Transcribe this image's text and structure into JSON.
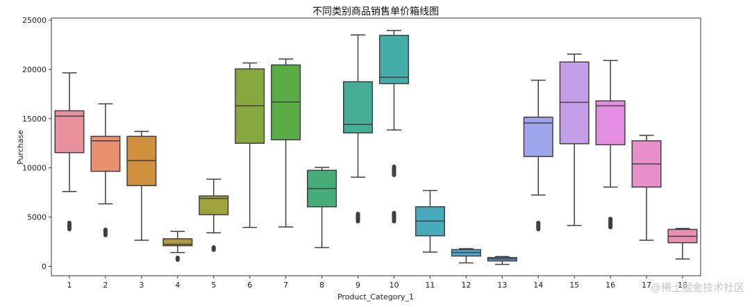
{
  "chart_data": {
    "type": "box",
    "title": "不同类别商品销售单价箱线图",
    "xlabel": "Product_Category_1",
    "ylabel": "Purchase",
    "ylim": [
      -1000,
      25500
    ],
    "yticks": [
      0,
      5000,
      10000,
      15000,
      20000,
      25000
    ],
    "categories": [
      "1",
      "2",
      "3",
      "4",
      "5",
      "6",
      "7",
      "8",
      "9",
      "10",
      "11",
      "12",
      "13",
      "14",
      "15",
      "16",
      "17",
      "18"
    ],
    "boxes": [
      {
        "category": "1",
        "color": "#e8919c",
        "whisker_low": 7600,
        "q1": 11550,
        "median": 15250,
        "q3": 15800,
        "whisker_high": 19650,
        "outliers": [
          3700,
          4500
        ]
      },
      {
        "category": "2",
        "color": "#e8906f",
        "whisker_low": 6350,
        "q1": 9650,
        "median": 12750,
        "q3": 13200,
        "whisker_high": 16500,
        "outliers": [
          3100,
          3800
        ]
      },
      {
        "category": "3",
        "color": "#d0903e",
        "whisker_low": 2650,
        "q1": 8200,
        "median": 10750,
        "q3": 13200,
        "whisker_high": 13700,
        "outliers": []
      },
      {
        "category": "4",
        "color": "#b49a3c",
        "whisker_low": 1400,
        "q1": 2100,
        "median": 2250,
        "q3": 2800,
        "whisker_high": 3550,
        "outliers": [
          600,
          950
        ]
      },
      {
        "category": "5",
        "color": "#9ea33a",
        "whisker_low": 3400,
        "q1": 5250,
        "median": 6900,
        "q3": 7150,
        "whisker_high": 8850,
        "outliers": [
          1600,
          2000
        ]
      },
      {
        "category": "6",
        "color": "#86a83f",
        "whisker_low": 3950,
        "q1": 12500,
        "median": 16300,
        "q3": 20050,
        "whisker_high": 20650,
        "outliers": []
      },
      {
        "category": "7",
        "color": "#5aac46",
        "whisker_low": 4000,
        "q1": 12850,
        "median": 16700,
        "q3": 20450,
        "whisker_high": 21050,
        "outliers": []
      },
      {
        "category": "8",
        "color": "#47ad78",
        "whisker_low": 1900,
        "q1": 6050,
        "median": 7900,
        "q3": 9750,
        "whisker_high": 10050,
        "outliers": []
      },
      {
        "category": "9",
        "color": "#45ae95",
        "whisker_low": 9050,
        "q1": 13550,
        "median": 14400,
        "q3": 18750,
        "whisker_high": 23500,
        "outliers": [
          4500,
          5400
        ]
      },
      {
        "category": "10",
        "color": "#45ada7",
        "whisker_low": 13850,
        "q1": 18550,
        "median": 19200,
        "q3": 23450,
        "whisker_high": 23950,
        "outliers": [
          4500,
          5500,
          9200,
          10200
        ]
      },
      {
        "category": "11",
        "color": "#48abbb",
        "whisker_low": 1450,
        "q1": 3100,
        "median": 4600,
        "q3": 6050,
        "whisker_high": 7700,
        "outliers": []
      },
      {
        "category": "12",
        "color": "#4ca8cd",
        "whisker_low": 350,
        "q1": 1050,
        "median": 1400,
        "q3": 1700,
        "whisker_high": 1800,
        "outliers": []
      },
      {
        "category": "13",
        "color": "#6aa2e0",
        "whisker_low": 200,
        "q1": 550,
        "median": 750,
        "q3": 900,
        "whisker_high": 1000,
        "outliers": []
      },
      {
        "category": "14",
        "color": "#9ea5ea",
        "whisker_low": 7250,
        "q1": 11150,
        "median": 14550,
        "q3": 15150,
        "whisker_high": 18900,
        "outliers": [
          3700,
          4500
        ]
      },
      {
        "category": "15",
        "color": "#c49ee6",
        "whisker_low": 4150,
        "q1": 12450,
        "median": 16650,
        "q3": 20750,
        "whisker_high": 21550,
        "outliers": []
      },
      {
        "category": "16",
        "color": "#e38ee0",
        "whisker_low": 8050,
        "q1": 12350,
        "median": 16300,
        "q3": 16800,
        "whisker_high": 20900,
        "outliers": [
          3900,
          4900
        ]
      },
      {
        "category": "17",
        "color": "#e68fc8",
        "whisker_low": 2650,
        "q1": 8050,
        "median": 10400,
        "q3": 12750,
        "whisker_high": 13300,
        "outliers": []
      },
      {
        "category": "18",
        "color": "#ea8fb3",
        "whisker_low": 750,
        "q1": 2400,
        "median": 3050,
        "q3": 3750,
        "whisker_high": 3850,
        "outliers": []
      }
    ],
    "grid": false,
    "legend": "none"
  },
  "watermark": "@稀土掘金技术社区"
}
